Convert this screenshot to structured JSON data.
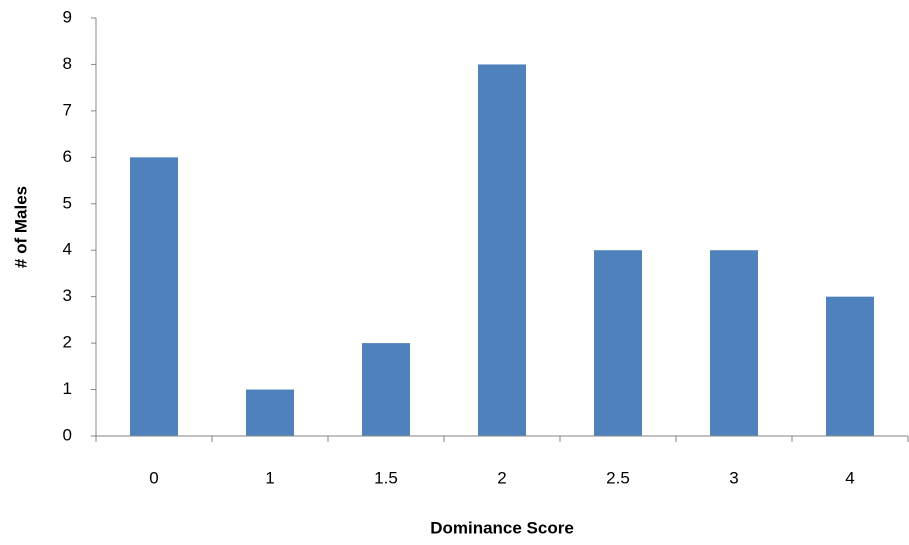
{
  "chart_data": {
    "type": "bar",
    "x_label": "Dominance Score",
    "y_label": "# of Males",
    "categories": [
      "0",
      "1",
      "1.5",
      "2",
      "2.5",
      "3",
      "4"
    ],
    "values": [
      6,
      1,
      2,
      8,
      4,
      4,
      3
    ],
    "color": "#4f81bd",
    "ylim": [
      0,
      9
    ],
    "yticks": [
      0,
      1,
      2,
      3,
      4,
      5,
      6,
      7,
      8,
      9
    ],
    "grid": false
  }
}
